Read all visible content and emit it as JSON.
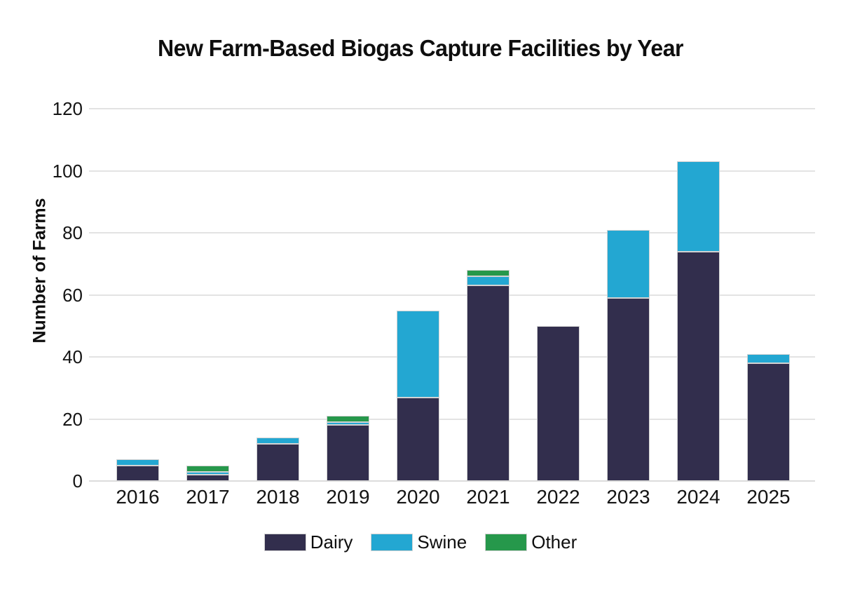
{
  "title": "New Farm-Based Biogas Capture Facilities by Year",
  "chart_data": {
    "type": "bar",
    "stacked": true,
    "title": "New Farm-Based Biogas Capture Facilities by Year",
    "xlabel": "",
    "ylabel": "Number of Farms",
    "categories": [
      "2016",
      "2017",
      "2018",
      "2019",
      "2020",
      "2021",
      "2022",
      "2023",
      "2024",
      "2025"
    ],
    "series": [
      {
        "name": "Dairy",
        "color": "#322e4d",
        "values": [
          5,
          2,
          12,
          18,
          27,
          63,
          50,
          59,
          74,
          38
        ]
      },
      {
        "name": "Swine",
        "color": "#23a7d2",
        "values": [
          2,
          1,
          2,
          1,
          28,
          3,
          0,
          22,
          29,
          3
        ]
      },
      {
        "name": "Other",
        "color": "#26984b",
        "values": [
          0,
          2,
          0,
          2,
          0,
          2,
          0,
          0,
          0,
          0
        ]
      }
    ],
    "totals": [
      7,
      5,
      14,
      21,
      55,
      68,
      50,
      81,
      103,
      41
    ],
    "ylim": [
      0,
      120
    ],
    "yticks": [
      0,
      20,
      40,
      60,
      80,
      100,
      120
    ],
    "grid": "horizontal-light-gray",
    "legend_position": "bottom",
    "background": "#ffffff"
  },
  "colors": {
    "grid": "#e3e3e3",
    "axis_baseline": "#dcdcdc",
    "bar_edge": "#d2d2d2",
    "text": "#141414"
  }
}
